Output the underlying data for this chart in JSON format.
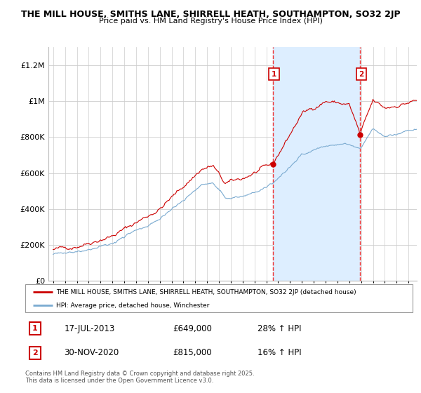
{
  "title1": "THE MILL HOUSE, SMITHS LANE, SHIRRELL HEATH, SOUTHAMPTON, SO32 2JP",
  "title2": "Price paid vs. HM Land Registry's House Price Index (HPI)",
  "legend_line1": "THE MILL HOUSE, SMITHS LANE, SHIRRELL HEATH, SOUTHAMPTON, SO32 2JP (detached house)",
  "legend_line2": "HPI: Average price, detached house, Winchester",
  "annotation1_date": "17-JUL-2013",
  "annotation1_price": "£649,000",
  "annotation1_hpi": "28% ↑ HPI",
  "annotation2_date": "30-NOV-2020",
  "annotation2_price": "£815,000",
  "annotation2_hpi": "16% ↑ HPI",
  "footnote": "Contains HM Land Registry data © Crown copyright and database right 2025.\nThis data is licensed under the Open Government Licence v3.0.",
  "red_line_color": "#cc0000",
  "blue_line_color": "#7aaad0",
  "shade_color": "#ddeeff",
  "vline_color": "#ee3333",
  "ylim_max": 1300000,
  "sale1_year": 2013.54,
  "sale1_value": 649000,
  "sale2_year": 2020.92,
  "sale2_value": 815000
}
